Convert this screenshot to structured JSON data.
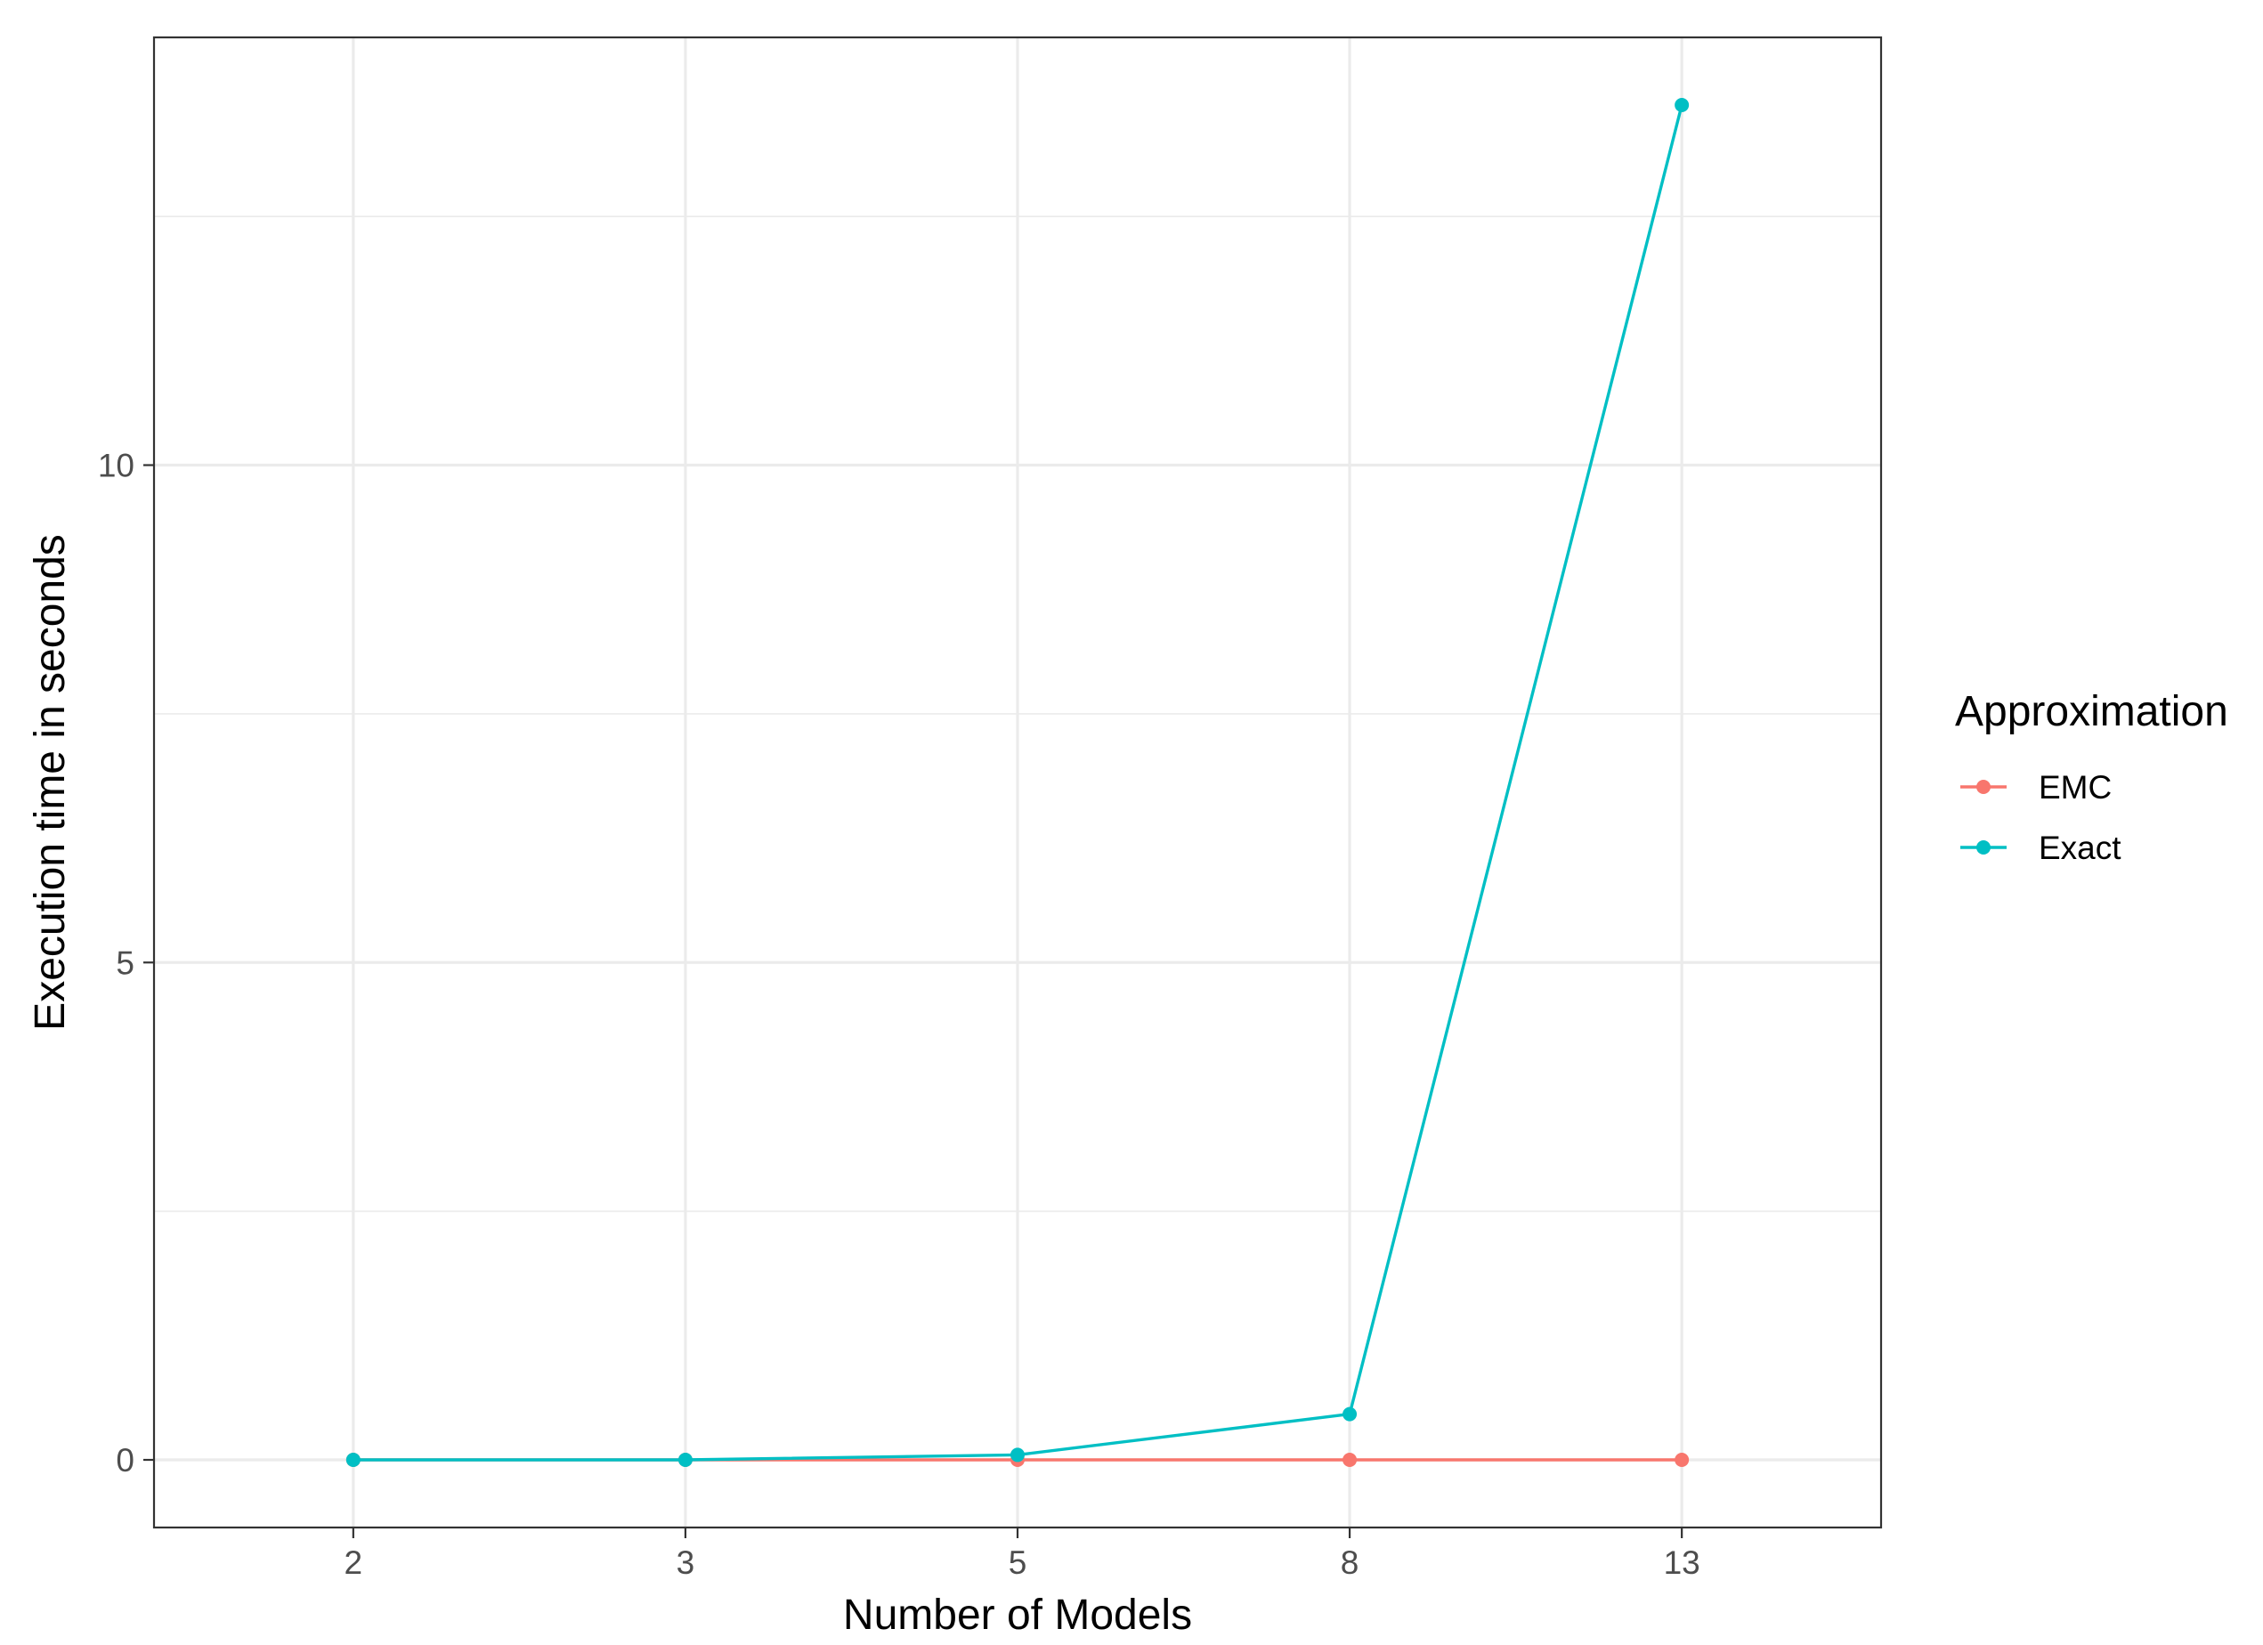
{
  "chart_data": {
    "type": "line",
    "xlabel": "Number of Models",
    "ylabel": "Execution time in seconds",
    "categories": [
      "2",
      "3",
      "5",
      "8",
      "13"
    ],
    "y_ticks": [
      0,
      5,
      10
    ],
    "y_tick_labels": [
      "0",
      "5",
      "10"
    ],
    "ylim": [
      -0.68,
      14.3
    ],
    "grid": true,
    "legend": {
      "title": "Approximation",
      "placement": "right",
      "items": [
        "EMC",
        "Exact"
      ]
    },
    "series": [
      {
        "name": "EMC",
        "color": "#F8766D",
        "values": [
          0.0,
          0.0,
          0.0,
          0.0,
          0.0
        ]
      },
      {
        "name": "Exact",
        "color": "#00BFC4",
        "values": [
          0.0,
          0.0,
          0.05,
          0.46,
          13.62
        ]
      }
    ]
  }
}
